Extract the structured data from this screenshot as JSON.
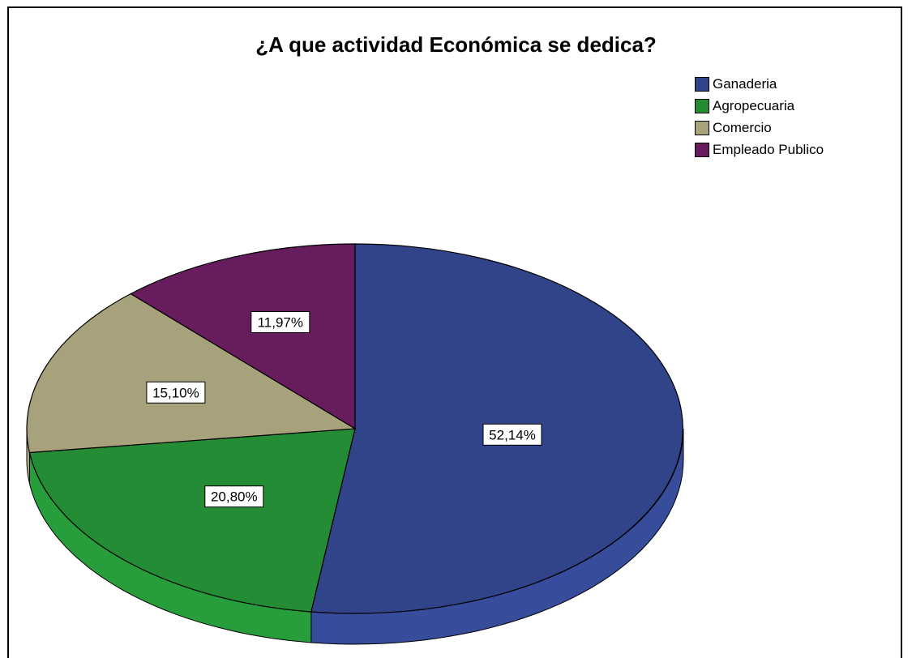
{
  "chart_data": {
    "type": "pie",
    "title": "¿A que actividad Económica se dedica?",
    "legend_position": "top-right",
    "slices": [
      {
        "name": "Ganaderia",
        "value": 52.14,
        "label": "52,14%",
        "color": "#31448a"
      },
      {
        "name": "Agropecuaria",
        "value": 20.8,
        "label": "20,80%",
        "color": "#238c35"
      },
      {
        "name": "Comercio",
        "value": 15.1,
        "label": "15,10%",
        "color": "#a8a27c"
      },
      {
        "name": "Empleado Publico",
        "value": 11.97,
        "label": "11,97%",
        "color": "#661c5d"
      }
    ]
  }
}
